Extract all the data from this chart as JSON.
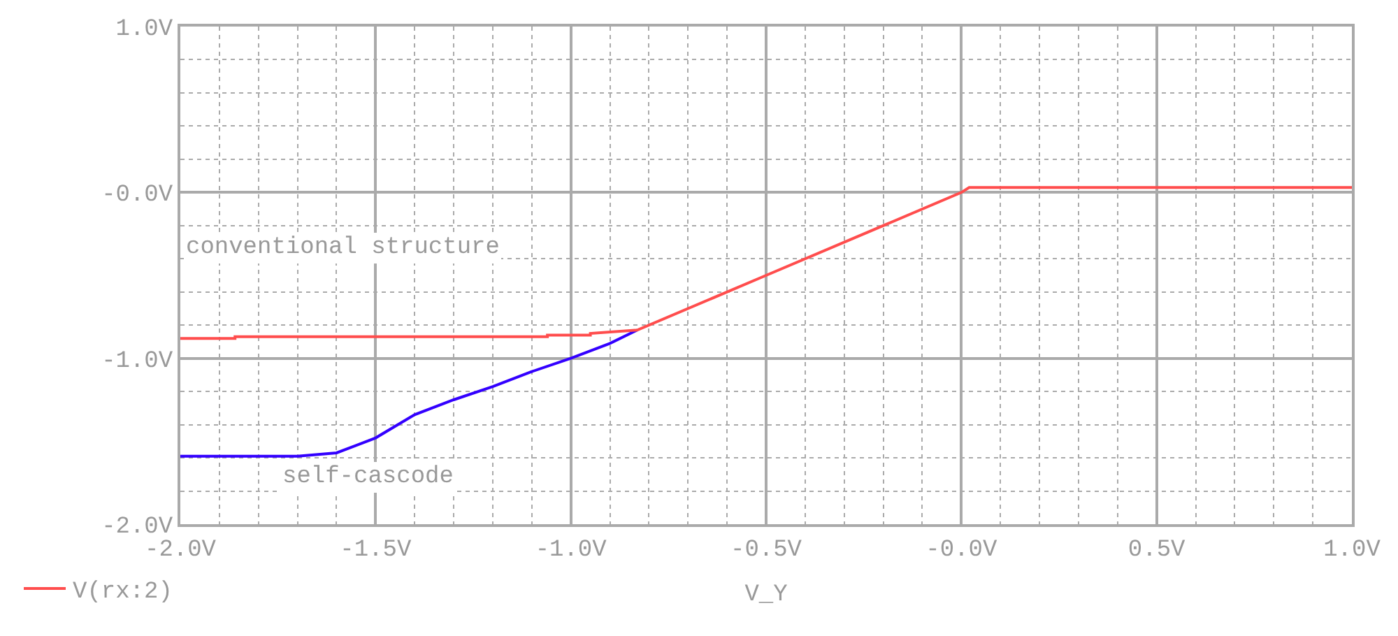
{
  "chart_data": {
    "type": "line",
    "xlabel": "V_Y",
    "xlim": [
      -2.0,
      1.0
    ],
    "ylim": [
      -2.0,
      1.0
    ],
    "xticks": [
      {
        "value": -2.0,
        "label": "-2.0V"
      },
      {
        "value": -1.5,
        "label": "-1.5V"
      },
      {
        "value": -1.0,
        "label": "-1.0V"
      },
      {
        "value": -0.5,
        "label": "-0.5V"
      },
      {
        "value": 0,
        "label": "-0.0V"
      },
      {
        "value": 0.5,
        "label": "0.5V"
      },
      {
        "value": 1.0,
        "label": "1.0V"
      }
    ],
    "yticks": [
      {
        "value": -2.0,
        "label": "-2.0V"
      },
      {
        "value": -1.0,
        "label": "-1.0V"
      },
      {
        "value": 0,
        "label": "-0.0V"
      },
      {
        "value": 1.0,
        "label": "1.0V"
      }
    ],
    "grid": true,
    "legend": "bottom left",
    "line_style": "solid",
    "marker": "none",
    "series": [
      {
        "color": "#3300ff",
        "x": [
          -2.0,
          -1.7,
          -1.6,
          -1.5,
          -1.4,
          -1.3,
          -1.2,
          -1.1,
          -1.0,
          -0.9,
          -0.83
        ],
        "values": [
          -1.59,
          -1.59,
          -1.57,
          -1.48,
          -1.34,
          -1.25,
          -1.17,
          -1.08,
          -1.0,
          -0.91,
          -0.83
        ]
      },
      {
        "name": "V(rx:2)",
        "color": "#ff4d4d",
        "x": [
          -2.0,
          -1.86,
          -1.86,
          -1.06,
          -1.06,
          -0.95,
          -0.95,
          -0.83,
          -0.5,
          0.0,
          0.02,
          1.0
        ],
        "values": [
          -0.88,
          -0.88,
          -0.87,
          -0.87,
          -0.86,
          -0.86,
          -0.85,
          -0.83,
          -0.5,
          0.0,
          0.03,
          0.03
        ]
      }
    ],
    "annotations": [
      "conventional structure",
      "self-cascode"
    ]
  }
}
